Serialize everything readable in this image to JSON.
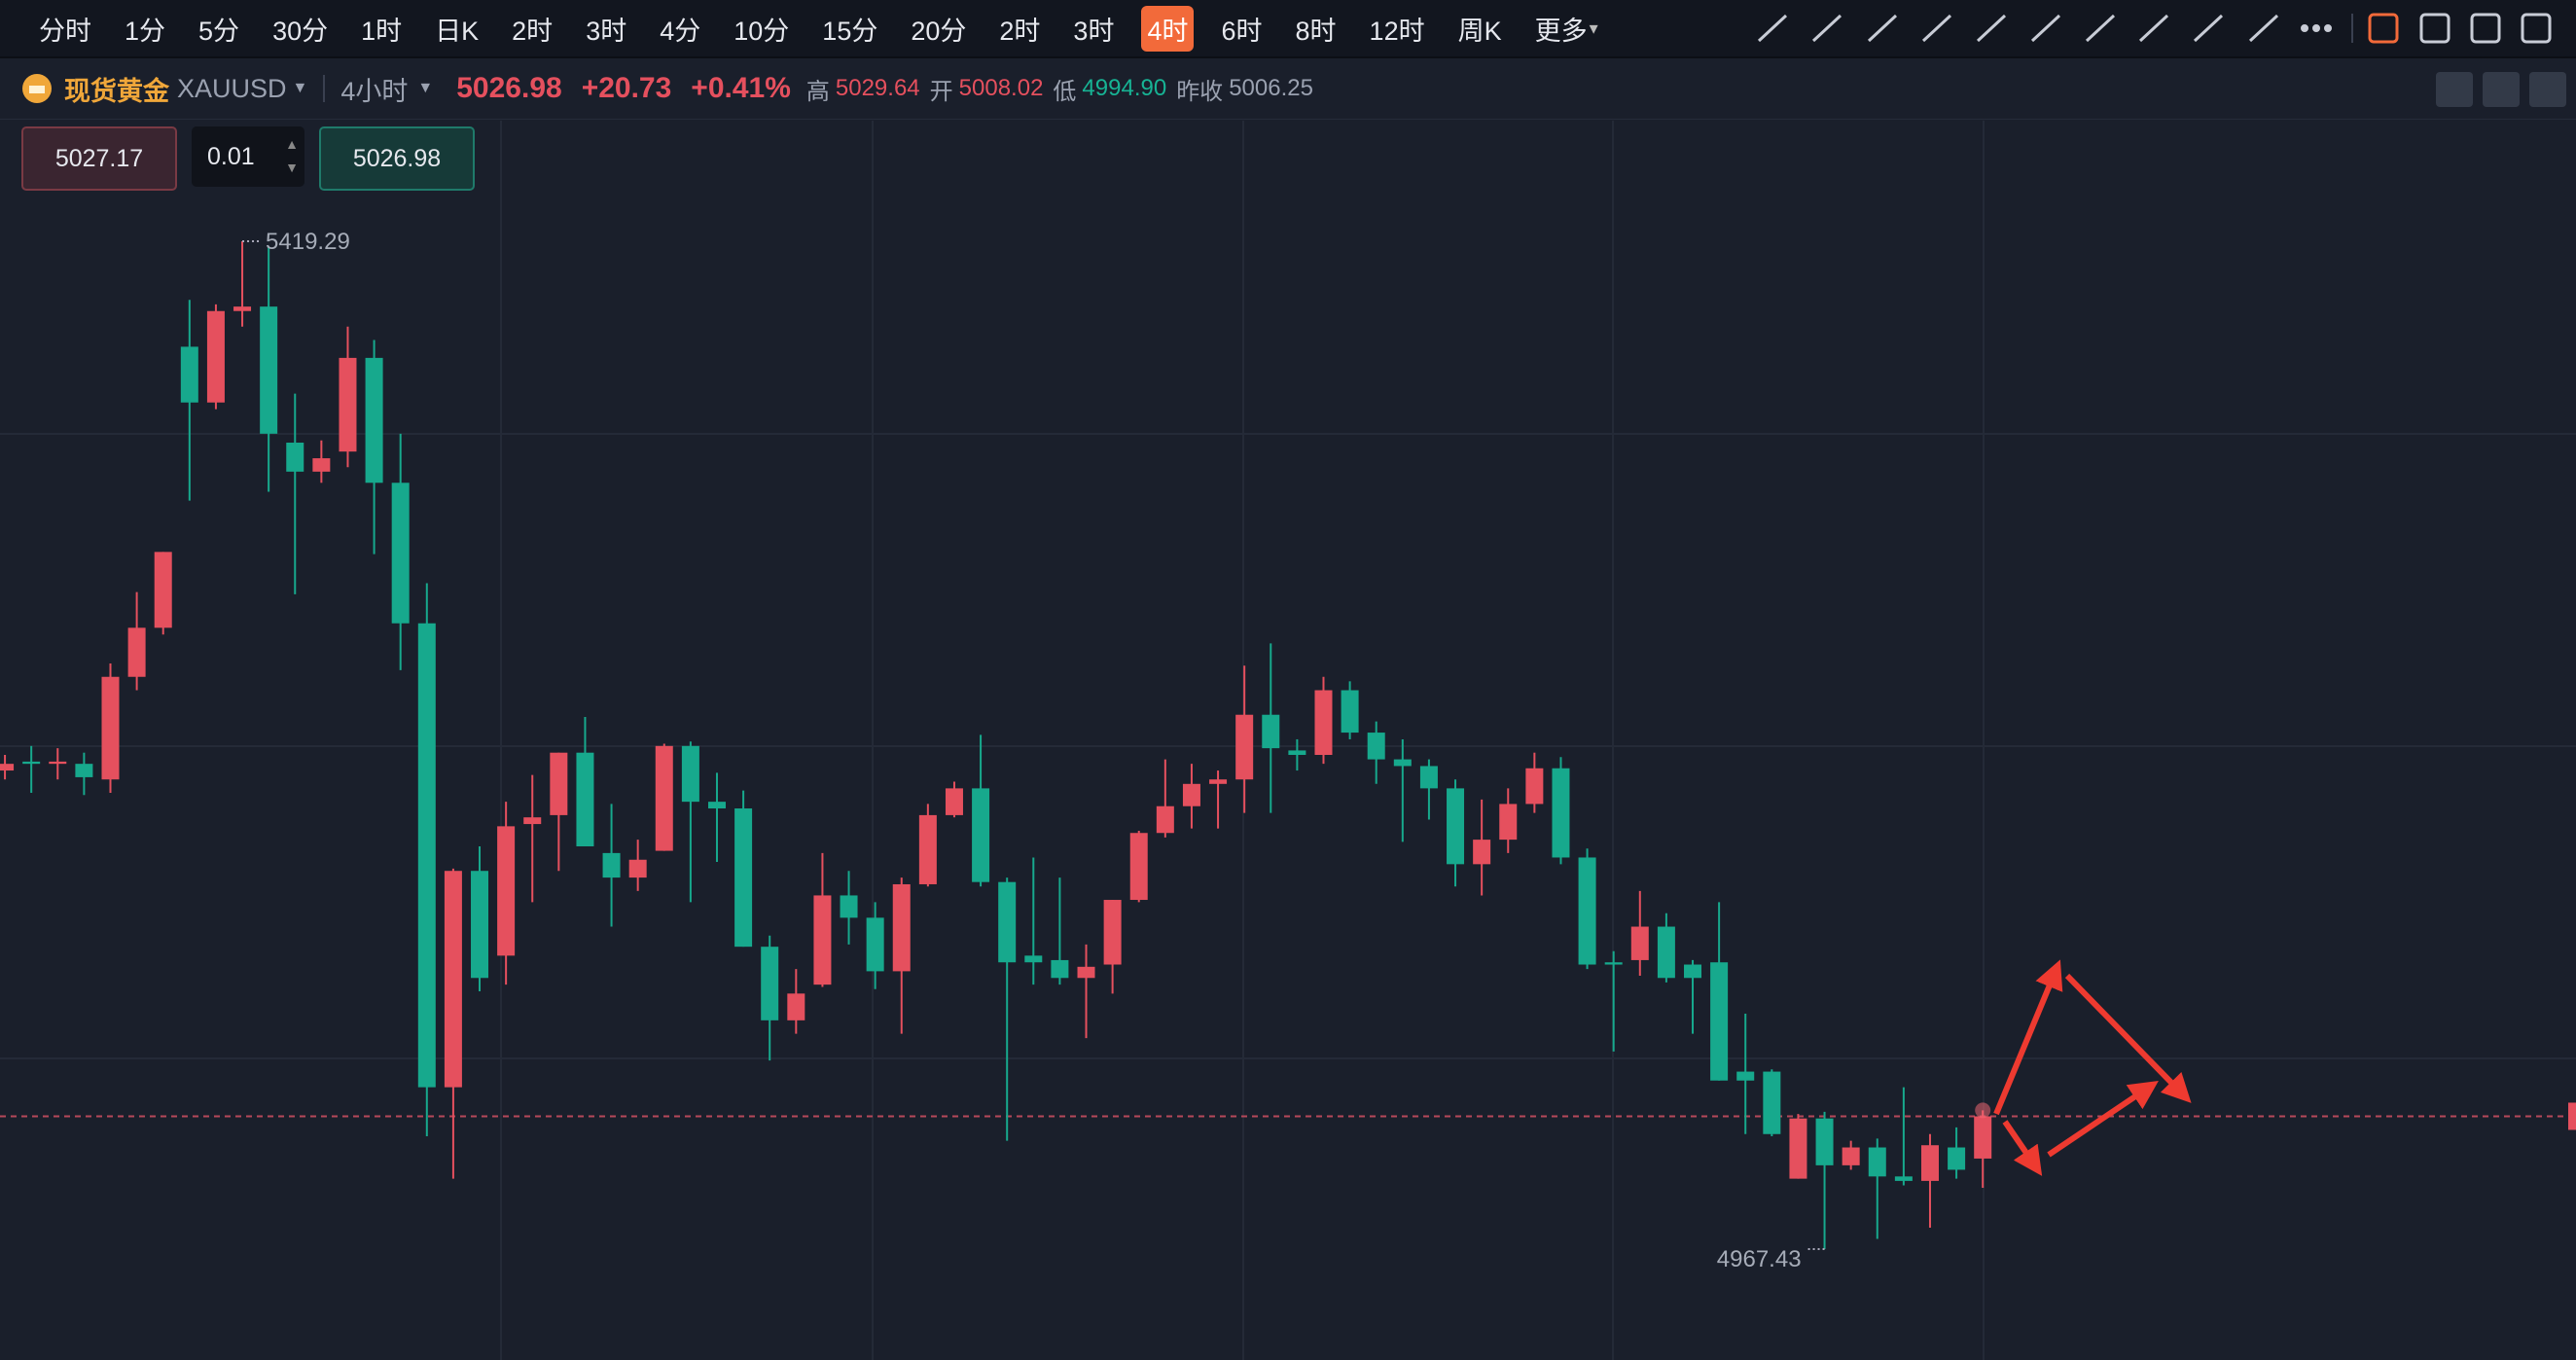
{
  "toolbar": {
    "periods": [
      "分时",
      "1分",
      "5分",
      "30分",
      "1时",
      "日K",
      "2时",
      "3时",
      "4分",
      "10分",
      "15分",
      "20分",
      "2时",
      "3时",
      "4时",
      "6时",
      "8时",
      "12时",
      "周K",
      "更多"
    ],
    "active": 14
  },
  "header": {
    "name": "现货黄金",
    "symbol": "XAUUSD",
    "period": "4小时",
    "price": "5026.98",
    "change": "+20.73",
    "change_pct": "+0.41%",
    "high_label": "高",
    "high": "5029.64",
    "open_label": "开",
    "open": "5008.02",
    "low_label": "低",
    "low": "4994.90",
    "prev_label": "昨收",
    "prev": "5006.25"
  },
  "order_panel": {
    "sell": "5027.17",
    "qty": "0.01",
    "buy": "5026.98"
  },
  "chart_data": {
    "type": "candlestick",
    "up_color": "#e5505e",
    "down_color": "#17a98d",
    "ohlc": [
      [
        5182,
        5189,
        5178,
        5185
      ],
      [
        5186,
        5193,
        5172,
        5185
      ],
      [
        5185,
        5192,
        5178,
        5186
      ],
      [
        5185,
        5190,
        5171,
        5179
      ],
      [
        5178,
        5230,
        5172,
        5224
      ],
      [
        5224,
        5262,
        5218,
        5246
      ],
      [
        5246,
        5280,
        5243,
        5280
      ],
      [
        5372,
        5393,
        5303,
        5347
      ],
      [
        5347,
        5391,
        5344,
        5388
      ],
      [
        5388,
        5419.29,
        5381,
        5390
      ],
      [
        5390,
        5417,
        5307,
        5333
      ],
      [
        5329,
        5351,
        5261,
        5316
      ],
      [
        5316,
        5330,
        5311,
        5322
      ],
      [
        5325,
        5381,
        5318,
        5367
      ],
      [
        5367,
        5375,
        5279,
        5311
      ],
      [
        5311,
        5333,
        5227,
        5248
      ],
      [
        5248,
        5266,
        5018,
        5040
      ],
      [
        5040,
        5138,
        4999,
        5137
      ],
      [
        5137,
        5148,
        5083,
        5089
      ],
      [
        5099,
        5168,
        5086,
        5157
      ],
      [
        5158,
        5180,
        5123,
        5161
      ],
      [
        5162,
        5190,
        5137,
        5190
      ],
      [
        5190,
        5206,
        5148,
        5148
      ],
      [
        5145,
        5167,
        5112,
        5134
      ],
      [
        5134,
        5151,
        5128,
        5142
      ],
      [
        5146,
        5194,
        5146,
        5193
      ],
      [
        5193,
        5195,
        5123,
        5168
      ],
      [
        5168,
        5181,
        5141,
        5165
      ],
      [
        5165,
        5173,
        5103,
        5103
      ],
      [
        5103,
        5108,
        5052,
        5070
      ],
      [
        5070,
        5093,
        5064,
        5082
      ],
      [
        5086,
        5145,
        5085,
        5126
      ],
      [
        5126,
        5137,
        5104,
        5116
      ],
      [
        5116,
        5123,
        5084,
        5092
      ],
      [
        5092,
        5134,
        5064,
        5131
      ],
      [
        5131,
        5167,
        5130,
        5162
      ],
      [
        5162,
        5177,
        5161,
        5174
      ],
      [
        5174,
        5198,
        5130,
        5132
      ],
      [
        5132,
        5134,
        5016,
        5096
      ],
      [
        5099,
        5143,
        5086,
        5096
      ],
      [
        5097,
        5134,
        5086,
        5089
      ],
      [
        5089,
        5104,
        5062,
        5094
      ],
      [
        5095,
        5124,
        5082,
        5124
      ],
      [
        5124,
        5155,
        5123,
        5154
      ],
      [
        5154,
        5187,
        5152,
        5166
      ],
      [
        5166,
        5185,
        5156,
        5176
      ],
      [
        5176,
        5182,
        5156,
        5178
      ],
      [
        5178,
        5229,
        5163,
        5207
      ],
      [
        5207,
        5239,
        5163,
        5192
      ],
      [
        5191,
        5196,
        5182,
        5189
      ],
      [
        5189,
        5224,
        5185,
        5218
      ],
      [
        5218,
        5222,
        5196,
        5199
      ],
      [
        5199,
        5204,
        5176,
        5187
      ],
      [
        5187,
        5196,
        5150,
        5184
      ],
      [
        5184,
        5187,
        5160,
        5174
      ],
      [
        5174,
        5178,
        5130,
        5140
      ],
      [
        5140,
        5169,
        5126,
        5151
      ],
      [
        5151,
        5174,
        5145,
        5167
      ],
      [
        5167,
        5190,
        5163,
        5183
      ],
      [
        5183,
        5188,
        5140,
        5143
      ],
      [
        5143,
        5147,
        5093,
        5095
      ],
      [
        5096,
        5101,
        5056,
        5095
      ],
      [
        5097,
        5128,
        5090,
        5112
      ],
      [
        5112,
        5118,
        5087,
        5089
      ],
      [
        5095,
        5097,
        5064,
        5089
      ],
      [
        5096,
        5123,
        5043,
        5043
      ],
      [
        5047,
        5073,
        5019,
        5043
      ],
      [
        5047,
        5048,
        5018,
        5019
      ],
      [
        4999,
        5028,
        4999,
        5026
      ],
      [
        5026,
        5029,
        4967.43,
        5005
      ],
      [
        5005,
        5016,
        5003,
        5013
      ],
      [
        5013,
        5017,
        4972,
        5000
      ],
      [
        5000,
        5040,
        4996,
        4998
      ],
      [
        4998,
        5019,
        4977,
        5014
      ],
      [
        5013,
        5022,
        4999,
        5003
      ],
      [
        5008.02,
        5029.64,
        4994.9,
        5026.98
      ]
    ]
  }
}
